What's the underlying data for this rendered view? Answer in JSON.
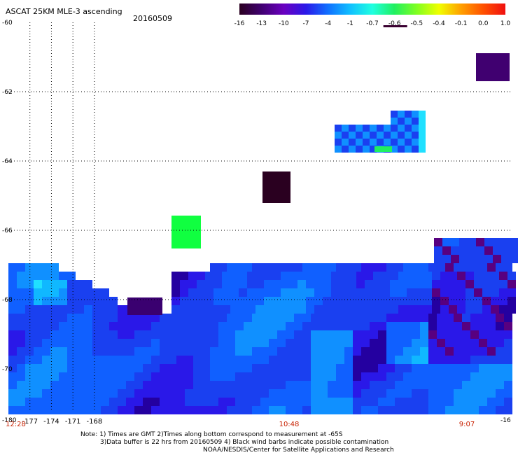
{
  "header": {
    "title": "ASCAT 25KM MLE-3 ascending",
    "date": "20160509"
  },
  "colorbar": {
    "labels": [
      "-16",
      "-13",
      "-10",
      "-7",
      "-4",
      "-1",
      "-0.7",
      "-0.6",
      "-0.5",
      "-0.4",
      "-0.1",
      "0.0",
      "1.0"
    ],
    "colors": [
      "#2a0020",
      "#400070",
      "#6a00c0",
      "#2a18e8",
      "#1070ff",
      "#10c0ff",
      "#20ffe0",
      "#20f060",
      "#80ff20",
      "#f0ff00",
      "#ffa000",
      "#ff5000",
      "#f01010"
    ],
    "marker_at": "-0.6"
  },
  "axes": {
    "lat_labels": [
      "-60",
      "-62",
      "-64",
      "-66",
      "-68",
      "-70"
    ],
    "lon_labels": [
      "-177",
      "-174",
      "-171",
      "-168"
    ],
    "lon_edge_left": "-180",
    "lon_edge_right": "-16",
    "time_labels": [
      "12:28",
      "10:48",
      "9:07"
    ]
  },
  "notes": {
    "line1": "Note: 1) Times are GMT 2)Times along bottom correspond to measurement at -65S",
    "line2": "3)Data buffer is 22 hrs from 20160509 4) Black wind barbs indicate possible contamination",
    "line3": "NOAA/NESDIS/Center for Satellite Applications and Research"
  },
  "colors": {
    "time_label": "#c82000",
    "gridline": "#000000"
  }
}
